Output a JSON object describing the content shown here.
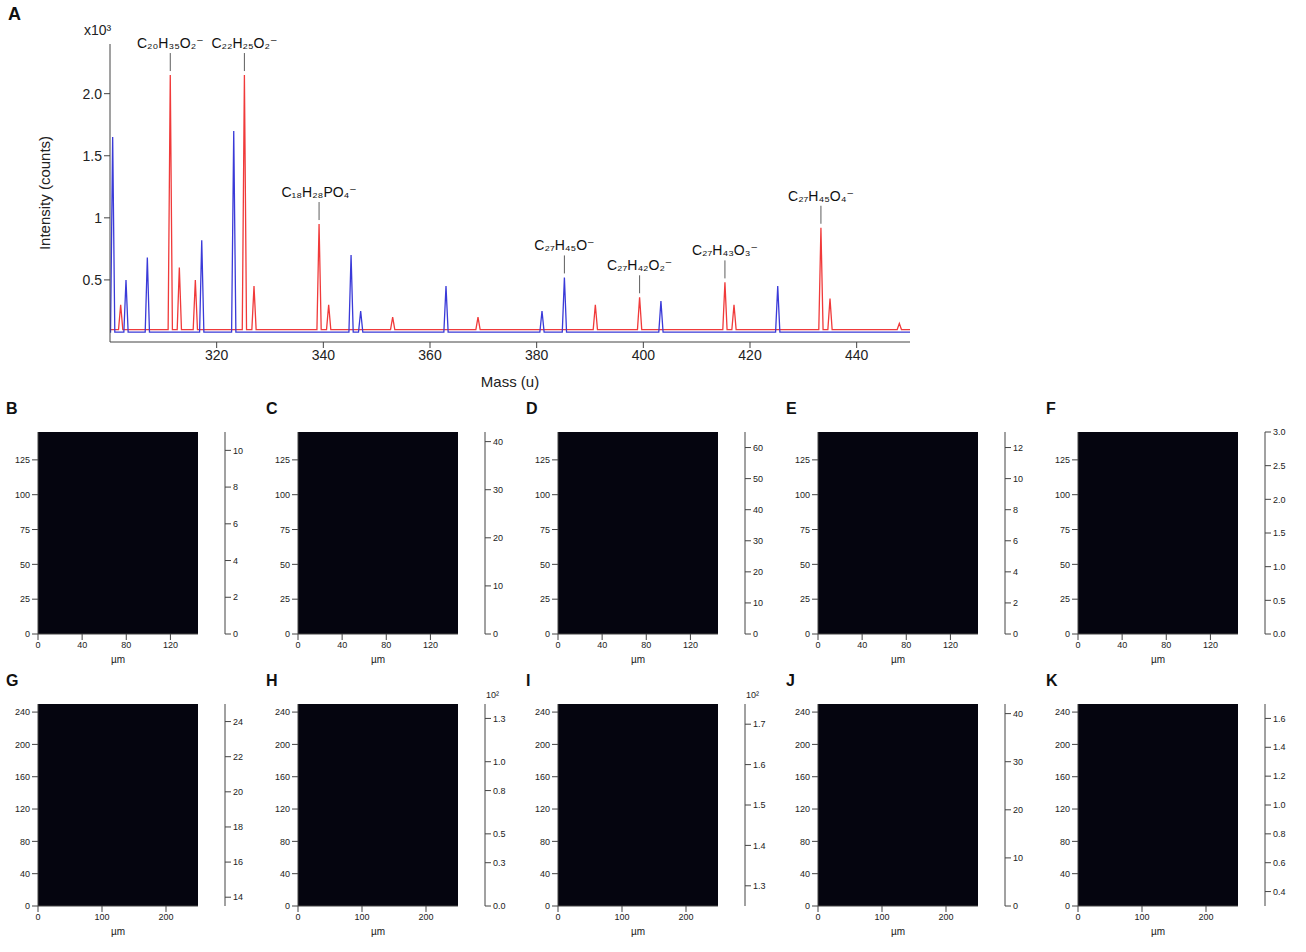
{
  "chart_data": [
    {
      "type": "line",
      "panel": "A",
      "xlabel": "Mass (u)",
      "ylabel": "Intensity (counts)",
      "y_scale_label": "x10³",
      "xlim": [
        300,
        450
      ],
      "xticks": [
        320,
        340,
        360,
        380,
        400,
        420,
        440
      ],
      "ylim": [
        0,
        2.4
      ],
      "yticks": [
        0.5,
        1,
        1.5,
        {
          "value": 2,
          "label": "2.0"
        }
      ],
      "series": [
        {
          "color": "#f03a3a",
          "x": [
            300,
            301.6,
            302,
            302.4,
            310.9,
            311.3,
            311.7,
            312.6,
            313,
            313.4,
            315.6,
            316,
            316.4,
            324.8,
            325.2,
            325.6,
            326.6,
            327,
            327.4,
            338.8,
            339.2,
            339.6,
            340.6,
            341,
            341.4,
            352.6,
            353,
            353.4,
            368.6,
            369,
            369.4,
            390.6,
            391,
            391.4,
            398.9,
            399.3,
            399.7,
            414.9,
            415.3,
            415.7,
            416.6,
            417,
            417.4,
            432.9,
            433.3,
            433.7,
            434.6,
            435,
            435.4,
            447.6,
            448,
            448.4,
            450
          ],
          "values": [
            0.1,
            0.1,
            0.3,
            0.1,
            0.1,
            2.15,
            0.1,
            0.1,
            0.6,
            0.1,
            0.1,
            0.5,
            0.1,
            0.1,
            2.15,
            0.1,
            0.1,
            0.45,
            0.1,
            0.1,
            0.95,
            0.1,
            0.1,
            0.3,
            0.1,
            0.1,
            0.2,
            0.1,
            0.1,
            0.2,
            0.1,
            0.1,
            0.3,
            0.1,
            0.1,
            0.36,
            0.1,
            0.1,
            0.48,
            0.1,
            0.1,
            0.3,
            0.1,
            0.1,
            0.92,
            0.1,
            0.1,
            0.35,
            0.1,
            0.1,
            0.15,
            0.1,
            0.1
          ]
        },
        {
          "color": "#3a3ad8",
          "x": [
            300,
            300.1,
            300.5,
            300.9,
            302.6,
            303,
            303.4,
            306.6,
            307,
            307.4,
            316.8,
            317.2,
            317.6,
            322.8,
            323.2,
            323.6,
            344.8,
            345.2,
            345.6,
            346.6,
            347,
            347.4,
            362.6,
            363,
            363.4,
            380.6,
            381,
            381.4,
            384.8,
            385.2,
            385.6,
            402.9,
            403.3,
            403.7,
            424.8,
            425.2,
            425.6,
            450
          ],
          "values": [
            0.08,
            0.08,
            1.65,
            0.08,
            0.08,
            0.5,
            0.08,
            0.08,
            0.68,
            0.08,
            0.08,
            0.82,
            0.08,
            0.08,
            1.7,
            0.08,
            0.08,
            0.7,
            0.08,
            0.08,
            0.25,
            0.08,
            0.08,
            0.45,
            0.08,
            0.08,
            0.25,
            0.08,
            0.08,
            0.52,
            0.08,
            0.08,
            0.33,
            0.08,
            0.08,
            0.45,
            0.08,
            0.08
          ]
        }
      ],
      "annotations": [
        {
          "text": "C₂₀H₃₅O₂⁻",
          "x": 311.3,
          "y": 2.15
        },
        {
          "text": "C₂₂H₂₅O₂⁻",
          "x": 325.2,
          "y": 2.15
        },
        {
          "text": "C₁₈H₂₈PO₄⁻",
          "x": 339.2,
          "y": 0.95
        },
        {
          "text": "C₂₇H₄₅O⁻",
          "x": 385.2,
          "y": 0.52
        },
        {
          "text": "C₂₇H₄₂O₂⁻",
          "x": 399.3,
          "y": 0.36
        },
        {
          "text": "C₂₇H₄₃O₃⁻",
          "x": 415.3,
          "y": 0.48
        },
        {
          "text": "C₂₇H₄₅O₄⁻",
          "x": 433.3,
          "y": 0.92
        }
      ]
    },
    {
      "type": "heatmap",
      "panel": "B",
      "xlabel": "µm",
      "xlim": [
        0,
        145
      ],
      "xticks": [
        0,
        40,
        80,
        120
      ],
      "ylim": [
        0,
        145
      ],
      "yticks": [
        0,
        25,
        50,
        75,
        100,
        125
      ],
      "colorbar": {
        "range": [
          0,
          11
        ],
        "ticks": [
          0,
          2,
          4,
          6,
          8,
          10
        ]
      }
    },
    {
      "type": "heatmap",
      "panel": "C",
      "xlabel": "µm",
      "xlim": [
        0,
        145
      ],
      "xticks": [
        0,
        40,
        80,
        120
      ],
      "ylim": [
        0,
        145
      ],
      "yticks": [
        0,
        25,
        50,
        75,
        100,
        125
      ],
      "colorbar": {
        "range": [
          0,
          42
        ],
        "ticks": [
          0,
          10,
          20,
          30,
          40
        ]
      }
    },
    {
      "type": "heatmap",
      "panel": "D",
      "xlabel": "µm",
      "xlim": [
        0,
        145
      ],
      "xticks": [
        0,
        40,
        80,
        120
      ],
      "ylim": [
        0,
        145
      ],
      "yticks": [
        0,
        25,
        50,
        75,
        100,
        125
      ],
      "colorbar": {
        "range": [
          0,
          65
        ],
        "ticks": [
          0,
          10,
          20,
          30,
          40,
          50,
          60
        ]
      }
    },
    {
      "type": "heatmap",
      "panel": "E",
      "xlabel": "µm",
      "xlim": [
        0,
        145
      ],
      "xticks": [
        0,
        40,
        80,
        120
      ],
      "ylim": [
        0,
        145
      ],
      "yticks": [
        0,
        25,
        50,
        75,
        100,
        125
      ],
      "colorbar": {
        "range": [
          0,
          13
        ],
        "ticks": [
          0,
          2,
          4,
          6,
          8,
          10,
          12
        ]
      }
    },
    {
      "type": "heatmap",
      "panel": "F",
      "xlabel": "µm",
      "xlim": [
        0,
        145
      ],
      "xticks": [
        0,
        40,
        80,
        120
      ],
      "ylim": [
        0,
        145
      ],
      "yticks": [
        0,
        25,
        50,
        75,
        100,
        125
      ],
      "colorbar": {
        "range": [
          0,
          3
        ],
        "ticks": [
          {
            "value": 0,
            "label": "0.0"
          },
          0.5,
          {
            "value": 1,
            "label": "1.0"
          },
          1.5,
          {
            "value": 2,
            "label": "2.0"
          },
          2.5,
          {
            "value": 3,
            "label": "3.0"
          }
        ]
      }
    },
    {
      "type": "heatmap",
      "panel": "G",
      "xlabel": "µm",
      "xlim": [
        0,
        250
      ],
      "xticks": [
        0,
        100,
        200
      ],
      "ylim": [
        0,
        250
      ],
      "yticks": [
        0,
        40,
        80,
        120,
        160,
        200,
        240
      ],
      "colorbar": {
        "range": [
          13.5,
          25
        ],
        "ticks": [
          14,
          16,
          18,
          20,
          22,
          24
        ]
      }
    },
    {
      "type": "heatmap",
      "panel": "H",
      "xlabel": "µm",
      "xlim": [
        0,
        250
      ],
      "xticks": [
        0,
        100,
        200
      ],
      "ylim": [
        0,
        250
      ],
      "yticks": [
        0,
        40,
        80,
        120,
        160,
        200,
        240
      ],
      "colorbar": {
        "range": [
          0,
          1.4
        ],
        "ticks": [
          {
            "value": 0,
            "label": "0.0"
          },
          0.3,
          0.5,
          0.8,
          {
            "value": 1,
            "label": "1.0"
          },
          1.3
        ],
        "label": "10²"
      }
    },
    {
      "type": "heatmap",
      "panel": "I",
      "xlabel": "µm",
      "xlim": [
        0,
        250
      ],
      "xticks": [
        0,
        100,
        200
      ],
      "ylim": [
        0,
        250
      ],
      "yticks": [
        0,
        40,
        80,
        120,
        160,
        200,
        240
      ],
      "colorbar": {
        "range": [
          1.25,
          1.75
        ],
        "ticks": [
          1.3,
          1.4,
          1.5,
          1.6,
          1.7
        ],
        "label": "10²"
      }
    },
    {
      "type": "heatmap",
      "panel": "J",
      "xlabel": "µm",
      "xlim": [
        0,
        250
      ],
      "xticks": [
        0,
        100,
        200
      ],
      "ylim": [
        0,
        250
      ],
      "yticks": [
        0,
        40,
        80,
        120,
        160,
        200,
        240
      ],
      "colorbar": {
        "range": [
          0,
          42
        ],
        "ticks": [
          0,
          10,
          20,
          30,
          40
        ]
      }
    },
    {
      "type": "heatmap",
      "panel": "K",
      "xlabel": "µm",
      "xlim": [
        0,
        250
      ],
      "xticks": [
        0,
        100,
        200
      ],
      "ylim": [
        0,
        250
      ],
      "yticks": [
        0,
        40,
        80,
        120,
        160,
        200,
        240
      ],
      "colorbar": {
        "range": [
          0.3,
          1.7
        ],
        "ticks": [
          0.4,
          0.6,
          0.8,
          {
            "value": 1,
            "label": "1.0"
          },
          1.2,
          1.4,
          1.6
        ]
      }
    }
  ]
}
